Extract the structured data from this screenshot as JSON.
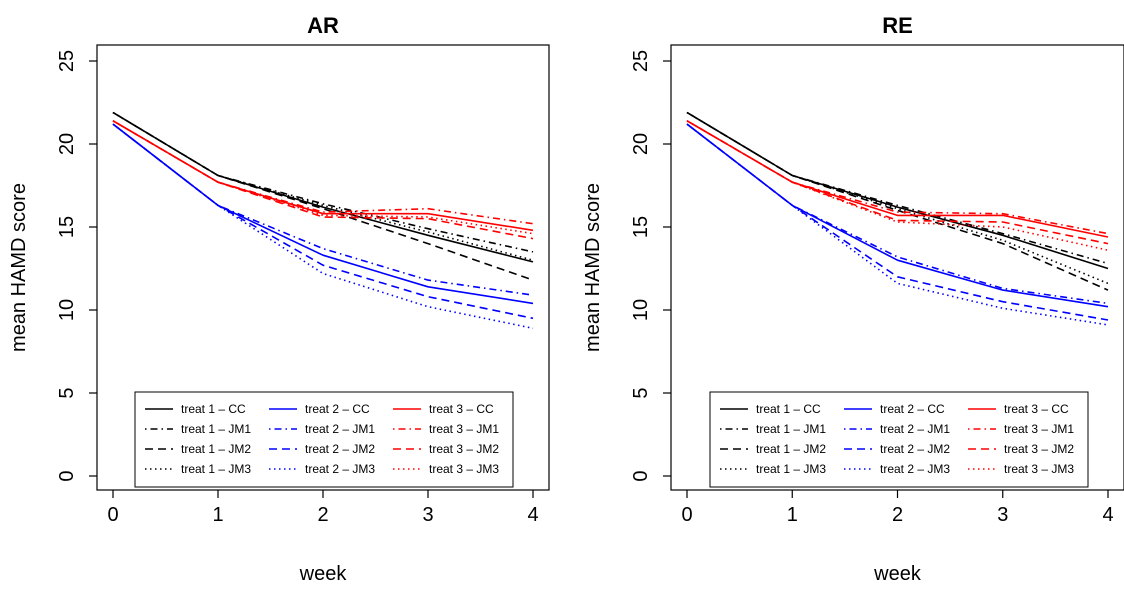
{
  "chart_data": [
    {
      "type": "line",
      "title": "AR",
      "xlabel": "week",
      "ylabel": "mean HAMD score",
      "xlim": [
        0,
        4
      ],
      "ylim": [
        0,
        25
      ],
      "x": [
        0,
        1,
        2,
        3,
        4
      ],
      "xticks": [
        "0",
        "1",
        "2",
        "3",
        "4"
      ],
      "yticks": [
        "0",
        "5",
        "10",
        "15",
        "20",
        "25"
      ],
      "grid": false,
      "legend_position": "bottom-center",
      "series": [
        {
          "name": "treat 1 – CC",
          "color": "#000000",
          "dash": "solid",
          "values": [
            21.9,
            18.1,
            16.2,
            14.5,
            12.9
          ]
        },
        {
          "name": "treat 1 – JM1",
          "color": "#000000",
          "dash": "dotdash",
          "values": [
            21.9,
            18.1,
            16.4,
            14.9,
            13.5
          ]
        },
        {
          "name": "treat 1 – JM2",
          "color": "#000000",
          "dash": "dashed",
          "values": [
            21.9,
            18.1,
            16.1,
            14.0,
            11.8
          ]
        },
        {
          "name": "treat 1 – JM3",
          "color": "#000000",
          "dash": "dotted",
          "values": [
            21.9,
            18.1,
            16.3,
            14.7,
            13.0
          ]
        },
        {
          "name": "treat 2 – CC",
          "color": "#0000ff",
          "dash": "solid",
          "values": [
            21.2,
            16.3,
            13.3,
            11.4,
            10.4
          ]
        },
        {
          "name": "treat 2 – JM1",
          "color": "#0000ff",
          "dash": "dotdash",
          "values": [
            21.2,
            16.3,
            13.7,
            11.8,
            10.9
          ]
        },
        {
          "name": "treat 2 – JM2",
          "color": "#0000ff",
          "dash": "dashed",
          "values": [
            21.2,
            16.3,
            12.7,
            10.8,
            9.5
          ]
        },
        {
          "name": "treat 2 – JM3",
          "color": "#0000ff",
          "dash": "dotted",
          "values": [
            21.2,
            16.3,
            12.2,
            10.2,
            8.9
          ]
        },
        {
          "name": "treat 3 – CC",
          "color": "#ff0000",
          "dash": "solid",
          "values": [
            21.4,
            17.7,
            15.8,
            15.8,
            14.8
          ]
        },
        {
          "name": "treat 3 – JM1",
          "color": "#ff0000",
          "dash": "dotdash",
          "values": [
            21.4,
            17.7,
            15.9,
            16.1,
            15.2
          ]
        },
        {
          "name": "treat 3 – JM2",
          "color": "#ff0000",
          "dash": "dashed",
          "values": [
            21.4,
            17.7,
            15.6,
            15.5,
            14.3
          ]
        },
        {
          "name": "treat 3 – JM3",
          "color": "#ff0000",
          "dash": "dotted",
          "values": [
            21.4,
            17.7,
            15.7,
            15.6,
            14.6
          ]
        }
      ]
    },
    {
      "type": "line",
      "title": "RE",
      "xlabel": "week",
      "ylabel": "mean HAMD score",
      "xlim": [
        0,
        4
      ],
      "ylim": [
        0,
        25
      ],
      "x": [
        0,
        1,
        2,
        3,
        4
      ],
      "xticks": [
        "0",
        "1",
        "2",
        "3",
        "4"
      ],
      "yticks": [
        "0",
        "5",
        "10",
        "15",
        "20",
        "25"
      ],
      "grid": false,
      "legend_position": "bottom-center",
      "series": [
        {
          "name": "treat 1 – CC",
          "color": "#000000",
          "dash": "solid",
          "values": [
            21.9,
            18.1,
            16.2,
            14.5,
            12.5
          ]
        },
        {
          "name": "treat 1 – JM1",
          "color": "#000000",
          "dash": "dotdash",
          "values": [
            21.9,
            18.1,
            16.3,
            14.6,
            12.8
          ]
        },
        {
          "name": "treat 1 – JM2",
          "color": "#000000",
          "dash": "dashed",
          "values": [
            21.9,
            18.1,
            16.0,
            14.0,
            11.2
          ]
        },
        {
          "name": "treat 1 – JM3",
          "color": "#000000",
          "dash": "dotted",
          "values": [
            21.9,
            18.1,
            16.1,
            14.2,
            11.6
          ]
        },
        {
          "name": "treat 2 – CC",
          "color": "#0000ff",
          "dash": "solid",
          "values": [
            21.2,
            16.3,
            13.0,
            11.2,
            10.2
          ]
        },
        {
          "name": "treat 2 – JM1",
          "color": "#0000ff",
          "dash": "dotdash",
          "values": [
            21.2,
            16.3,
            13.2,
            11.3,
            10.4
          ]
        },
        {
          "name": "treat 2 – JM2",
          "color": "#0000ff",
          "dash": "dashed",
          "values": [
            21.2,
            16.3,
            12.0,
            10.5,
            9.4
          ]
        },
        {
          "name": "treat 2 – JM3",
          "color": "#0000ff",
          "dash": "dotted",
          "values": [
            21.2,
            16.3,
            11.6,
            10.1,
            9.1
          ]
        },
        {
          "name": "treat 3 – CC",
          "color": "#ff0000",
          "dash": "solid",
          "values": [
            21.4,
            17.7,
            15.7,
            15.7,
            14.4
          ]
        },
        {
          "name": "treat 3 – JM1",
          "color": "#ff0000",
          "dash": "dotdash",
          "values": [
            21.4,
            17.7,
            15.9,
            15.8,
            14.6
          ]
        },
        {
          "name": "treat 3 – JM2",
          "color": "#ff0000",
          "dash": "dashed",
          "values": [
            21.4,
            17.7,
            15.4,
            15.3,
            14.0
          ]
        },
        {
          "name": "treat 3 – JM3",
          "color": "#ff0000",
          "dash": "dotted",
          "values": [
            21.4,
            17.7,
            15.3,
            15.0,
            13.6
          ]
        }
      ]
    }
  ]
}
